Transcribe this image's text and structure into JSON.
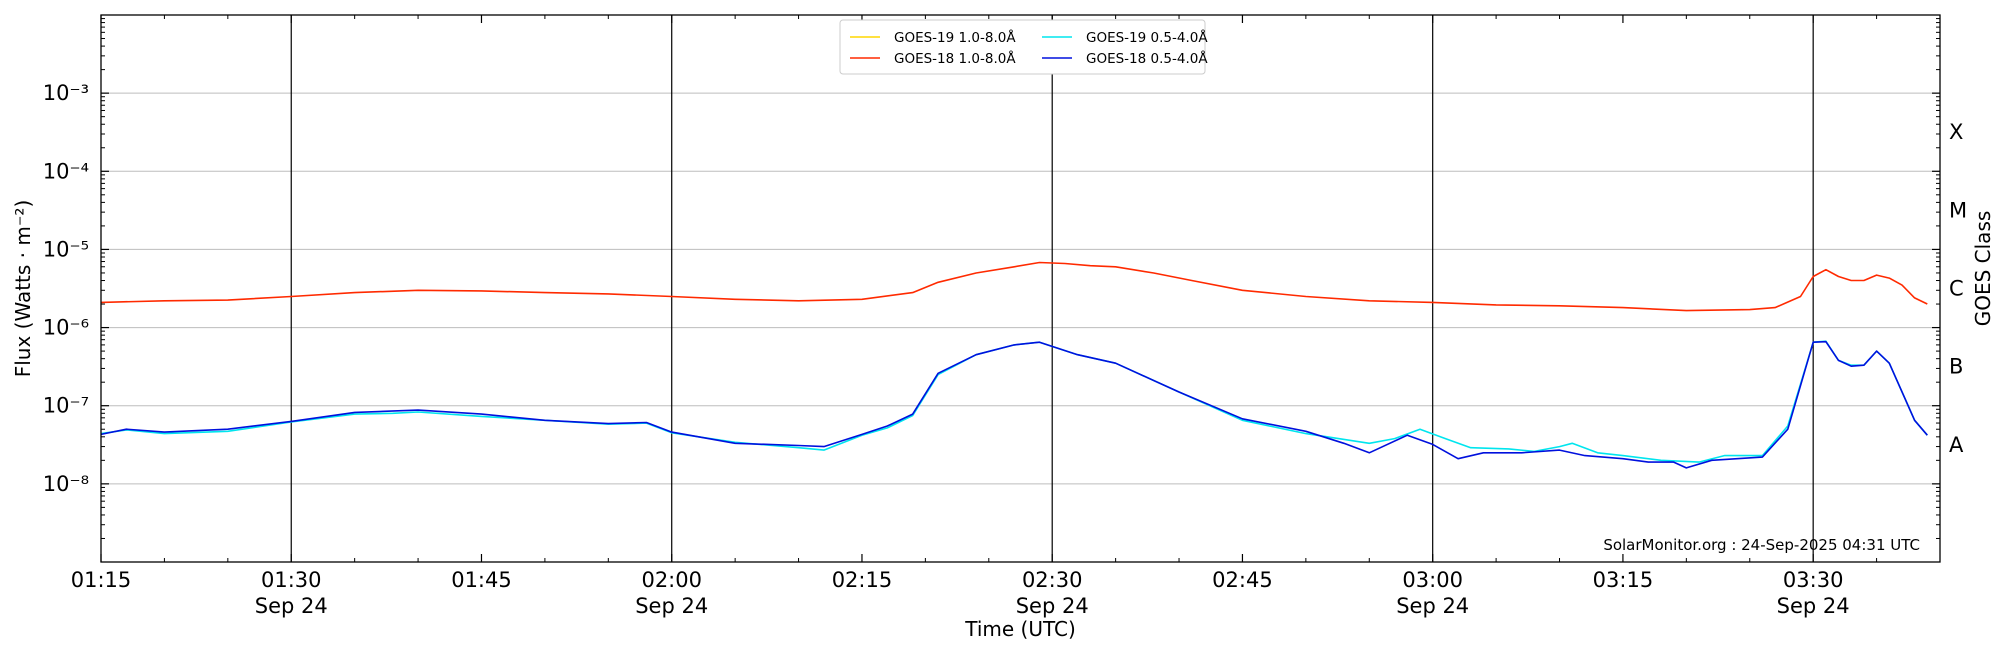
{
  "chart_data": {
    "type": "line",
    "xlabel": "Time (UTC)",
    "ylabel": "Flux (Watts · m⁻²)",
    "y2label": "GOES Class",
    "yscale": "log",
    "ylim": [
      1e-09,
      0.01
    ],
    "xlim": [
      "01:15",
      "03:40"
    ],
    "grid": true,
    "legend_position": "top-center",
    "watermark": "SolarMonitor.org : 24-Sep-2025 04:31 UTC",
    "x_ticks": [
      {
        "value": "01:15",
        "label": "01:15",
        "sublabel": ""
      },
      {
        "value": "01:30",
        "label": "01:30",
        "sublabel": "Sep 24"
      },
      {
        "value": "01:45",
        "label": "01:45",
        "sublabel": ""
      },
      {
        "value": "02:00",
        "label": "02:00",
        "sublabel": "Sep 24"
      },
      {
        "value": "02:15",
        "label": "02:15",
        "sublabel": ""
      },
      {
        "value": "02:30",
        "label": "02:30",
        "sublabel": "Sep 24"
      },
      {
        "value": "02:45",
        "label": "02:45",
        "sublabel": ""
      },
      {
        "value": "03:00",
        "label": "03:00",
        "sublabel": "Sep 24"
      },
      {
        "value": "03:15",
        "label": "03:15",
        "sublabel": ""
      },
      {
        "value": "03:30",
        "label": "03:30",
        "sublabel": "Sep 24"
      }
    ],
    "y_ticks": [
      {
        "exp": -3,
        "label": "10⁻³"
      },
      {
        "exp": -4,
        "label": "10⁻⁴"
      },
      {
        "exp": -5,
        "label": "10⁻⁵"
      },
      {
        "exp": -6,
        "label": "10⁻⁶"
      },
      {
        "exp": -7,
        "label": "10⁻⁷"
      },
      {
        "exp": -8,
        "label": "10⁻⁸"
      }
    ],
    "class_labels": [
      {
        "label": "X",
        "exp": -3.5
      },
      {
        "label": "M",
        "exp": -4.5
      },
      {
        "label": "C",
        "exp": -5.5
      },
      {
        "label": "B",
        "exp": -6.5
      },
      {
        "label": "A",
        "exp": -7.5
      }
    ],
    "vertical_lines": [
      "01:30",
      "02:00",
      "02:30",
      "03:00",
      "03:30"
    ],
    "series": [
      {
        "name": "GOES-19 1.0-8.0Å",
        "color": "#ffd700",
        "points": []
      },
      {
        "name": "GOES-18 1.0-8.0Å",
        "color": "#ff2a00",
        "points": [
          [
            "01:15",
            2.1e-06
          ],
          [
            "01:20",
            2.2e-06
          ],
          [
            "01:25",
            2.25e-06
          ],
          [
            "01:30",
            2.5e-06
          ],
          [
            "01:35",
            2.8e-06
          ],
          [
            "01:40",
            3e-06
          ],
          [
            "01:45",
            2.95e-06
          ],
          [
            "01:50",
            2.8e-06
          ],
          [
            "01:55",
            2.7e-06
          ],
          [
            "02:00",
            2.5e-06
          ],
          [
            "02:05",
            2.3e-06
          ],
          [
            "02:10",
            2.2e-06
          ],
          [
            "02:15",
            2.3e-06
          ],
          [
            "02:19",
            2.8e-06
          ],
          [
            "02:21",
            3.8e-06
          ],
          [
            "02:24",
            5e-06
          ],
          [
            "02:27",
            6e-06
          ],
          [
            "02:29",
            6.8e-06
          ],
          [
            "02:31",
            6.6e-06
          ],
          [
            "02:33",
            6.2e-06
          ],
          [
            "02:35",
            6e-06
          ],
          [
            "02:38",
            5e-06
          ],
          [
            "02:41",
            4e-06
          ],
          [
            "02:45",
            3e-06
          ],
          [
            "02:50",
            2.5e-06
          ],
          [
            "02:55",
            2.2e-06
          ],
          [
            "03:00",
            2.1e-06
          ],
          [
            "03:05",
            1.95e-06
          ],
          [
            "03:10",
            1.9e-06
          ],
          [
            "03:15",
            1.8e-06
          ],
          [
            "03:20",
            1.65e-06
          ],
          [
            "03:25",
            1.7e-06
          ],
          [
            "03:27",
            1.8e-06
          ],
          [
            "03:29",
            2.5e-06
          ],
          [
            "03:30",
            4.5e-06
          ],
          [
            "03:31",
            5.5e-06
          ],
          [
            "03:32",
            4.5e-06
          ],
          [
            "03:33",
            4e-06
          ],
          [
            "03:34",
            4e-06
          ],
          [
            "03:35",
            4.7e-06
          ],
          [
            "03:36",
            4.3e-06
          ],
          [
            "03:37",
            3.5e-06
          ],
          [
            "03:38",
            2.4e-06
          ],
          [
            "03:39",
            2e-06
          ]
        ]
      },
      {
        "name": "GOES-19 0.5-4.0Å",
        "color": "#00e5ee",
        "points": [
          [
            "01:15",
            4.4e-08
          ],
          [
            "01:17",
            4.9e-08
          ],
          [
            "01:20",
            4.4e-08
          ],
          [
            "01:25",
            4.7e-08
          ],
          [
            "01:30",
            6.2e-08
          ],
          [
            "01:35",
            7.8e-08
          ],
          [
            "01:38",
            8e-08
          ],
          [
            "01:40",
            8.3e-08
          ],
          [
            "01:45",
            7.3e-08
          ],
          [
            "01:50",
            6.5e-08
          ],
          [
            "01:55",
            5.8e-08
          ],
          [
            "01:58",
            6e-08
          ],
          [
            "02:00",
            4.5e-08
          ],
          [
            "02:05",
            3.4e-08
          ],
          [
            "02:10",
            2.9e-08
          ],
          [
            "02:12",
            2.7e-08
          ],
          [
            "02:15",
            4.2e-08
          ],
          [
            "02:17",
            5.2e-08
          ],
          [
            "02:19",
            7.5e-08
          ],
          [
            "02:21",
            2.5e-07
          ],
          [
            "02:24",
            4.5e-07
          ],
          [
            "02:27",
            6e-07
          ],
          [
            "02:29",
            6.5e-07
          ],
          [
            "02:32",
            4.5e-07
          ],
          [
            "02:35",
            3.5e-07
          ],
          [
            "02:40",
            1.5e-07
          ],
          [
            "02:45",
            6.5e-08
          ],
          [
            "02:50",
            4.4e-08
          ],
          [
            "02:55",
            3.3e-08
          ],
          [
            "02:57",
            3.8e-08
          ],
          [
            "02:59",
            5e-08
          ],
          [
            "03:01",
            3.8e-08
          ],
          [
            "03:03",
            2.9e-08
          ],
          [
            "03:06",
            2.8e-08
          ],
          [
            "03:08",
            2.6e-08
          ],
          [
            "03:10",
            3e-08
          ],
          [
            "03:11",
            3.3e-08
          ],
          [
            "03:13",
            2.5e-08
          ],
          [
            "03:15",
            2.3e-08
          ],
          [
            "03:18",
            2e-08
          ],
          [
            "03:21",
            1.9e-08
          ],
          [
            "03:23",
            2.3e-08
          ],
          [
            "03:26",
            2.3e-08
          ],
          [
            "03:28",
            5.5e-08
          ],
          [
            "03:30",
            6.5e-07
          ],
          [
            "03:31",
            6.7e-07
          ],
          [
            "03:32",
            3.8e-07
          ],
          [
            "03:33",
            3.3e-07
          ],
          [
            "03:34",
            3.3e-07
          ],
          [
            "03:35",
            5e-07
          ],
          [
            "03:36",
            3.5e-07
          ],
          [
            "03:38",
            6.5e-08
          ],
          [
            "03:39",
            4.2e-08
          ]
        ]
      },
      {
        "name": "GOES-18 0.5-4.0Å",
        "color": "#0010dd",
        "points": [
          [
            "01:15",
            4.3e-08
          ],
          [
            "01:17",
            5e-08
          ],
          [
            "01:20",
            4.6e-08
          ],
          [
            "01:25",
            5e-08
          ],
          [
            "01:30",
            6.3e-08
          ],
          [
            "01:35",
            8.2e-08
          ],
          [
            "01:40",
            8.8e-08
          ],
          [
            "01:45",
            7.8e-08
          ],
          [
            "01:50",
            6.5e-08
          ],
          [
            "01:55",
            5.9e-08
          ],
          [
            "01:58",
            6.1e-08
          ],
          [
            "02:00",
            4.6e-08
          ],
          [
            "02:05",
            3.3e-08
          ],
          [
            "02:10",
            3.1e-08
          ],
          [
            "02:12",
            3e-08
          ],
          [
            "02:15",
            4.3e-08
          ],
          [
            "02:17",
            5.5e-08
          ],
          [
            "02:19",
            7.8e-08
          ],
          [
            "02:21",
            2.6e-07
          ],
          [
            "02:24",
            4.5e-07
          ],
          [
            "02:27",
            6e-07
          ],
          [
            "02:29",
            6.5e-07
          ],
          [
            "02:32",
            4.5e-07
          ],
          [
            "02:35",
            3.5e-07
          ],
          [
            "02:40",
            1.5e-07
          ],
          [
            "02:45",
            6.8e-08
          ],
          [
            "02:50",
            4.7e-08
          ],
          [
            "02:53",
            3.3e-08
          ],
          [
            "02:55",
            2.5e-08
          ],
          [
            "02:58",
            4.2e-08
          ],
          [
            "03:00",
            3.2e-08
          ],
          [
            "03:02",
            2.1e-08
          ],
          [
            "03:04",
            2.5e-08
          ],
          [
            "03:07",
            2.5e-08
          ],
          [
            "03:10",
            2.7e-08
          ],
          [
            "03:12",
            2.3e-08
          ],
          [
            "03:15",
            2.1e-08
          ],
          [
            "03:17",
            1.9e-08
          ],
          [
            "03:19",
            1.9e-08
          ],
          [
            "03:20",
            1.6e-08
          ],
          [
            "03:22",
            2e-08
          ],
          [
            "03:26",
            2.2e-08
          ],
          [
            "03:28",
            5e-08
          ],
          [
            "03:30",
            6.5e-07
          ],
          [
            "03:31",
            6.6e-07
          ],
          [
            "03:32",
            3.8e-07
          ],
          [
            "03:33",
            3.2e-07
          ],
          [
            "03:34",
            3.3e-07
          ],
          [
            "03:35",
            5e-07
          ],
          [
            "03:36",
            3.5e-07
          ],
          [
            "03:38",
            6.5e-08
          ],
          [
            "03:39",
            4.2e-08
          ]
        ]
      }
    ]
  }
}
